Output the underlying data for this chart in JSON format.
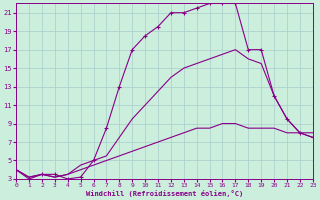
{
  "xlabel": "Windchill (Refroidissement éolien,°C)",
  "bg_color": "#cceedd",
  "line_color": "#880088",
  "grid_color": "#aacccc",
  "xlim": [
    0,
    23
  ],
  "ylim": [
    3,
    22
  ],
  "yticks": [
    3,
    5,
    7,
    9,
    11,
    13,
    15,
    17,
    19,
    21
  ],
  "xticks": [
    0,
    1,
    2,
    3,
    4,
    5,
    6,
    7,
    8,
    9,
    10,
    11,
    12,
    13,
    14,
    15,
    16,
    17,
    18,
    19,
    20,
    21,
    22,
    23
  ],
  "curve_top_x": [
    0,
    1,
    2,
    3,
    4,
    5,
    6,
    7,
    8,
    9,
    10,
    11,
    12,
    13,
    14,
    15,
    16,
    17,
    18,
    19,
    20,
    21,
    22,
    23
  ],
  "curve_top_y": [
    4,
    3,
    3.5,
    3.5,
    3,
    3.2,
    5,
    8.5,
    13,
    17,
    18.5,
    19.5,
    21,
    21,
    21.5,
    22,
    22,
    22,
    17,
    17,
    12,
    9.5,
    8,
    7.5
  ],
  "curve_mid_x": [
    0,
    1,
    2,
    3,
    4,
    5,
    6,
    7,
    8,
    9,
    10,
    11,
    12,
    13,
    14,
    15,
    16,
    17,
    18,
    19,
    20,
    21,
    22,
    23
  ],
  "curve_mid_y": [
    4,
    3.2,
    3.5,
    3.2,
    3.5,
    4.5,
    5,
    5.5,
    7.5,
    9.5,
    11,
    12.5,
    14,
    15,
    15.5,
    16,
    16.5,
    17,
    16,
    15.5,
    12,
    9.5,
    8,
    7.5
  ],
  "curve_bot_x": [
    0,
    1,
    2,
    3,
    4,
    5,
    6,
    7,
    8,
    9,
    10,
    11,
    12,
    13,
    14,
    15,
    16,
    17,
    18,
    19,
    20,
    21,
    22,
    23
  ],
  "curve_bot_y": [
    4,
    3.2,
    3.5,
    3.2,
    3.5,
    4,
    4.5,
    5,
    5.5,
    6,
    6.5,
    7,
    7.5,
    8,
    8.5,
    8.5,
    9,
    9,
    8.5,
    8.5,
    8.5,
    8,
    8,
    8
  ]
}
